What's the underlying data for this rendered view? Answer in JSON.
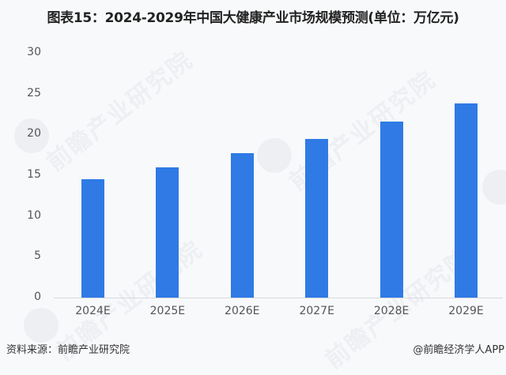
{
  "title": "图表15：2024-2029年中国大健康产业市场规模预测(单位：万亿元)",
  "footer": {
    "source": "资料来源：前瞻产业研究院",
    "credit": "@前瞻经济学人APP"
  },
  "watermark_text": "前瞻产业研究院",
  "colors": {
    "bar": "#2f7ae5",
    "background": "#f8f9fb",
    "axis": "#d6d9de"
  },
  "chart_data": {
    "type": "bar",
    "title": "图表15：2024-2029年中国大健康产业市场规模预测(单位：万亿元)",
    "xlabel": "",
    "ylabel": "",
    "unit": "万亿元",
    "categories": [
      "2024E",
      "2025E",
      "2026E",
      "2027E",
      "2028E",
      "2029E"
    ],
    "values": [
      14.5,
      16.0,
      17.7,
      19.5,
      21.6,
      23.8
    ],
    "ylim": [
      0,
      30
    ],
    "yticks": [
      0,
      5,
      10,
      15,
      20,
      25,
      30
    ],
    "grid": false,
    "legend": null
  }
}
